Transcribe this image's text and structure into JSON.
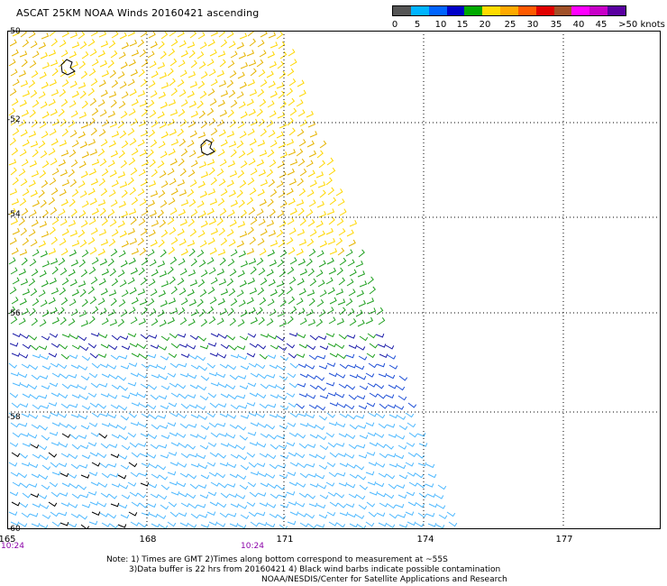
{
  "title": "ASCAT 25KM NOAA Winds 20160421 ascending",
  "colorbar": {
    "colors": [
      "#555555",
      "#00b4ff",
      "#0064ff",
      "#0000c8",
      "#00aa00",
      "#ffdc00",
      "#ffaa00",
      "#ff5a00",
      "#e00000",
      "#a05028",
      "#ff00ff",
      "#c800c8",
      "#5a00a0"
    ],
    "labels": [
      "0",
      "5",
      "10",
      "15",
      "20",
      "25",
      "30",
      "35",
      "40",
      "45",
      ">50 knots"
    ]
  },
  "map": {
    "lat_labels": [
      "-50",
      "-52",
      "-54",
      "-56",
      "-58",
      "-60"
    ],
    "lon_labels": [
      "165",
      "168",
      "171",
      "174",
      "177"
    ],
    "time_labels": [
      "10:24",
      "10:24"
    ],
    "barb_color_bands": [
      "#ffd700",
      "#e6b400",
      "#20a020",
      "#1a1aa8",
      "#4db8ff",
      "#1e4fd6",
      "#000000"
    ]
  },
  "notes": [
    "Note: 1) Times are GMT 2)Times along bottom correspond to measurement at ~55S",
    "3)Data buffer is 22 hrs from 20160421 4) Black wind barbs indicate possible contamination",
    "NOAA/NESDIS/Center for Satellite Applications and Research"
  ]
}
